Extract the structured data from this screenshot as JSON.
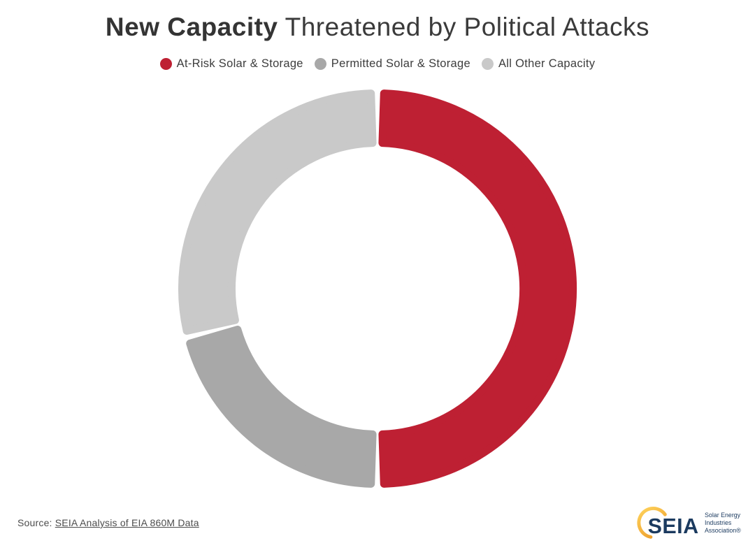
{
  "header": {
    "title_bold": "New Capacity",
    "title_rest": " Threatened by Political Attacks"
  },
  "chart_data": {
    "type": "pie",
    "variant": "donut",
    "title": "New Capacity Threatened by Political Attacks",
    "series": [
      {
        "label": "At-Risk Solar & Storage",
        "value": 50,
        "color": "#BE2033"
      },
      {
        "label": "Permitted Solar & Storage",
        "value": 21,
        "color": "#A8A8A8"
      },
      {
        "label": "All Other Capacity",
        "value": 29,
        "color": "#C9C9C9"
      }
    ],
    "units": "percent_of_total",
    "start_angle_deg": 0,
    "direction": "clockwise",
    "inner_radius_ratio": 0.71,
    "legend_position": "top",
    "data_labels": false,
    "gap_between_segments": true,
    "rounded_segment_corners": true
  },
  "footer": {
    "source_prefix": "Source: ",
    "source_link": "SEIA Analysis of EIA 860M Data"
  },
  "logo": {
    "text": "SEIA",
    "tagline_lines": [
      "Solar Energy",
      "Industries",
      "Association®"
    ],
    "navy": "#1B3A5F",
    "gold_light": "#FFD35C",
    "gold_dark": "#EDA12F"
  }
}
